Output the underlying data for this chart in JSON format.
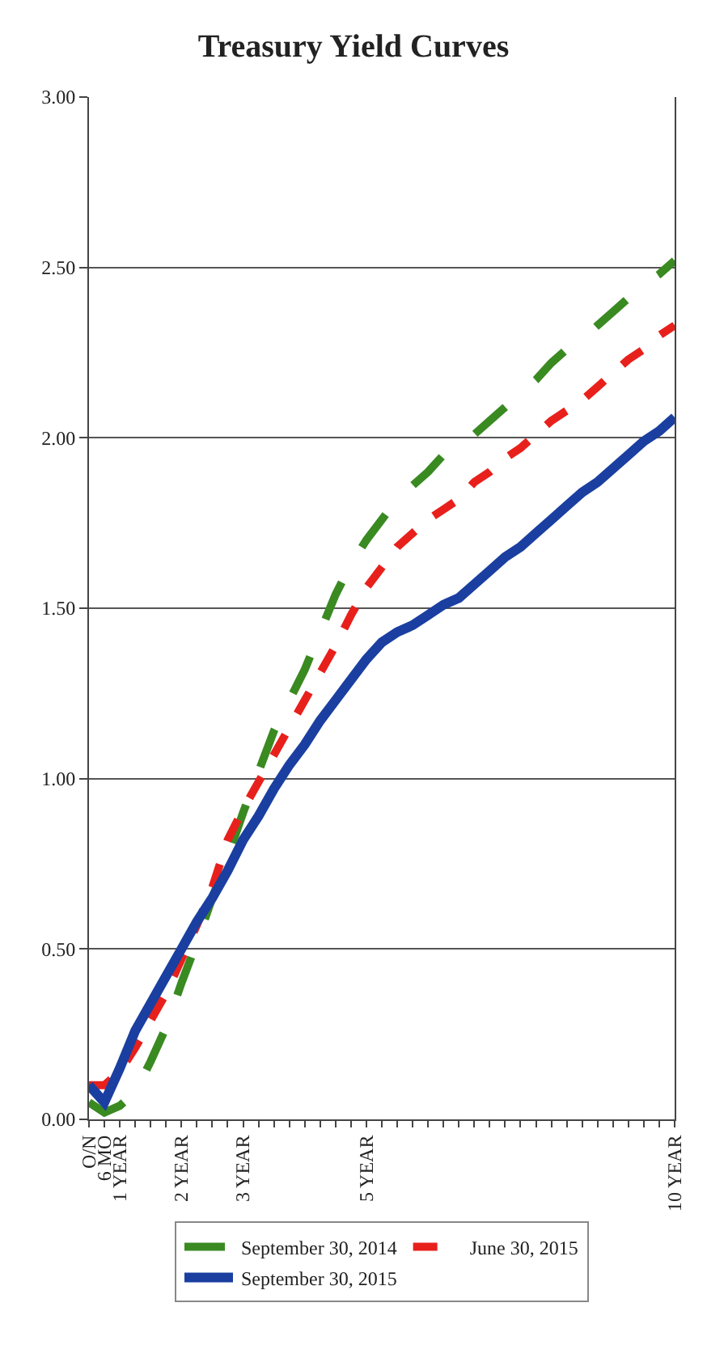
{
  "chart_data": {
    "type": "line",
    "title": "Treasury Yield Curves",
    "categories": [
      "O/N",
      "6 MO",
      "1 YEAR",
      null,
      null,
      null,
      "2 YEAR",
      null,
      null,
      null,
      "3 YEAR",
      null,
      null,
      null,
      null,
      null,
      null,
      null,
      "5 YEAR",
      null,
      null,
      null,
      null,
      null,
      null,
      null,
      null,
      null,
      null,
      null,
      null,
      null,
      null,
      null,
      null,
      null,
      null,
      null,
      "10 YEAR"
    ],
    "series": [
      {
        "name": "September 30, 2014",
        "color": "#3a8a22",
        "line_style": "dashed",
        "values": [
          0.05,
          0.02,
          0.04,
          0.08,
          0.17,
          0.27,
          0.4,
          0.52,
          0.65,
          0.77,
          0.9,
          1.02,
          1.14,
          1.23,
          1.32,
          1.43,
          1.54,
          1.63,
          1.7,
          1.76,
          1.82,
          1.86,
          1.9,
          1.95,
          1.98,
          2.01,
          2.05,
          2.09,
          2.13,
          2.17,
          2.22,
          2.26,
          2.29,
          2.33,
          2.37,
          2.41,
          2.45,
          2.48,
          2.52
        ]
      },
      {
        "name": "June 30, 2015",
        "color": "#e8201c",
        "line_style": "dotted",
        "values": [
          0.1,
          0.1,
          0.14,
          0.21,
          0.29,
          0.37,
          0.47,
          0.57,
          0.68,
          0.82,
          0.91,
          0.99,
          1.07,
          1.15,
          1.23,
          1.31,
          1.39,
          1.48,
          1.56,
          1.62,
          1.68,
          1.72,
          1.76,
          1.79,
          1.82,
          1.87,
          1.9,
          1.94,
          1.97,
          2.01,
          2.05,
          2.08,
          2.11,
          2.15,
          2.19,
          2.23,
          2.26,
          2.3,
          2.33
        ]
      },
      {
        "name": "September 30, 2015",
        "color": "#1a3fa0",
        "line_style": "solid",
        "values": [
          0.1,
          0.05,
          0.15,
          0.26,
          0.34,
          0.42,
          0.5,
          0.58,
          0.65,
          0.73,
          0.82,
          0.89,
          0.97,
          1.04,
          1.1,
          1.17,
          1.23,
          1.29,
          1.35,
          1.4,
          1.43,
          1.45,
          1.48,
          1.51,
          1.53,
          1.57,
          1.61,
          1.65,
          1.68,
          1.72,
          1.76,
          1.8,
          1.84,
          1.87,
          1.91,
          1.95,
          1.99,
          2.02,
          2.06
        ]
      }
    ],
    "ylim": [
      0,
      3
    ],
    "yticks": [
      {
        "value": 0,
        "label": "0.00"
      },
      {
        "value": 0.5,
        "label": "0.50"
      },
      {
        "value": 1,
        "label": "1.00"
      },
      {
        "value": 1.5,
        "label": "1.50"
      },
      {
        "value": 2,
        "label": "2.00"
      },
      {
        "value": 2.5,
        "label": "2.50"
      },
      {
        "value": 3,
        "label": "3.00"
      }
    ],
    "grid": "y",
    "legend": "bottom",
    "marker": "none"
  }
}
